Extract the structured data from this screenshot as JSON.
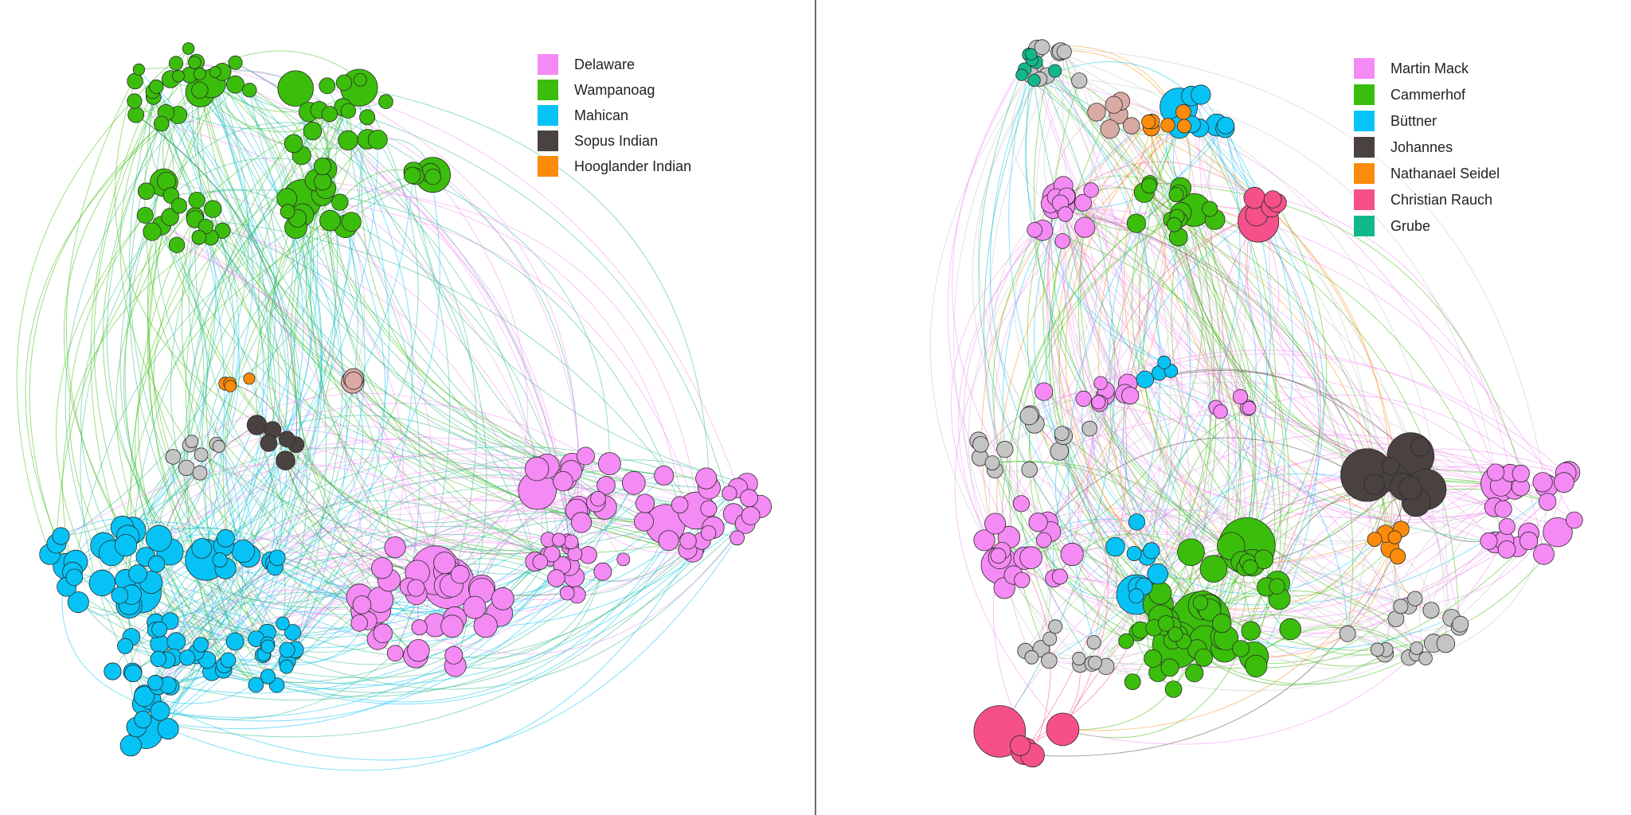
{
  "left_panel": {
    "legend": [
      {
        "label": "Delaware",
        "color": "#f48af4"
      },
      {
        "label": "Wampanoag",
        "color": "#3bbd0c"
      },
      {
        "label": "Mahican",
        "color": "#07c3f5"
      },
      {
        "label": "Sopus Indian",
        "color": "#4a4240"
      },
      {
        "label": "Hooglander Indian",
        "color": "#fb8b0a"
      }
    ]
  },
  "right_panel": {
    "legend": [
      {
        "label": "Martin Mack",
        "color": "#f48af4"
      },
      {
        "label": "Cammerhof",
        "color": "#3bbd0c"
      },
      {
        "label": "Büttner",
        "color": "#07c3f5"
      },
      {
        "label": "Johannes",
        "color": "#4a4240"
      },
      {
        "label": "Nathanael Seidel",
        "color": "#fb8b0a"
      },
      {
        "label": "Christian Rauch",
        "color": "#f5508a"
      },
      {
        "label": "Grube",
        "color": "#12b88a"
      }
    ]
  },
  "palette": {
    "pink": "#f48af4",
    "green": "#3bbd0c",
    "blue": "#07c3f5",
    "dark": "#4a4240",
    "orange": "#fb8b0a",
    "rose": "#f5508a",
    "teal": "#12b88a",
    "gray": "#c4c4c4",
    "beige": "#d9aaa3"
  }
}
